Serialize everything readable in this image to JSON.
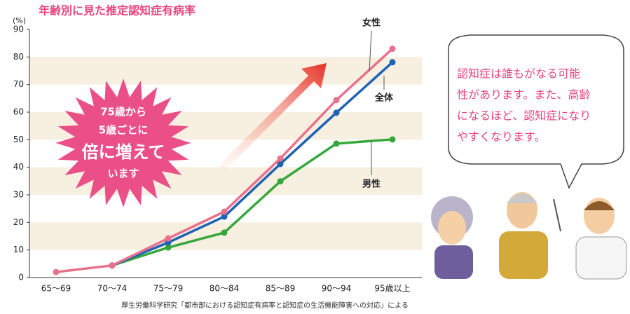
{
  "chart_data": {
    "type": "line",
    "title": "年齢別に見た推定認知症有病率",
    "y_label": "(%)",
    "categories": [
      "65〜69",
      "70〜74",
      "75〜79",
      "80〜84",
      "85〜89",
      "90〜94",
      "95歳以上"
    ],
    "series": [
      {
        "name": "女性",
        "color": "#e8728b",
        "values": [
          2.0,
          4.4,
          14.2,
          23.9,
          43.2,
          64.4,
          83.0
        ]
      },
      {
        "name": "全体",
        "color": "#1f63b5",
        "values": [
          null,
          4.4,
          12.7,
          22.1,
          41.2,
          59.8,
          78.1
        ]
      },
      {
        "name": "男性",
        "color": "#35a83b",
        "values": [
          null,
          4.4,
          10.9,
          16.3,
          34.9,
          48.6,
          50.1
        ]
      }
    ],
    "ylim": [
      0,
      90
    ],
    "yticks": [
      0,
      10,
      20,
      30,
      40,
      50,
      60,
      70,
      80,
      90
    ],
    "grid": "bands",
    "starburst": [
      "75歳から",
      "5歳ごとに",
      "倍に増えて",
      "います"
    ],
    "bubble": [
      "認知症は誰もがなる可能",
      "性があります。また、高齢",
      "になるほど、認知症になり",
      "やすくなります。"
    ],
    "source": "厚生労働科学研究「都市部における認知症有病率と認知症の生活機能障害への対応」による"
  }
}
